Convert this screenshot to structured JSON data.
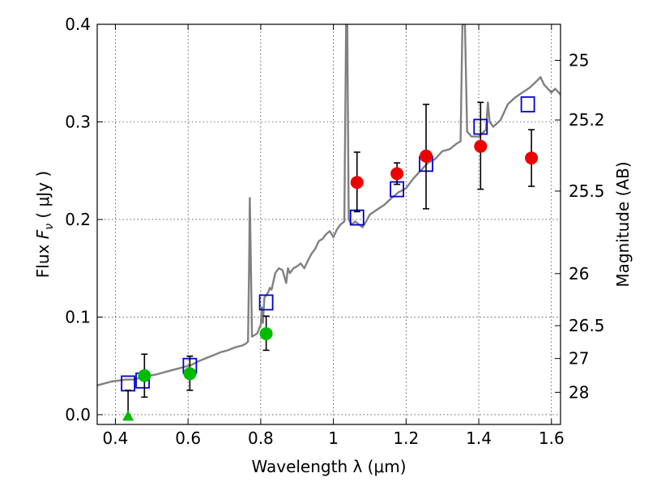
{
  "chart_data": {
    "type": "scatter",
    "xlabel": "Wavelength  λ (μm)",
    "ylabel_prefix": "Flux  ",
    "ylabel_var": "F",
    "ylabel_sub": "ν",
    "ylabel_unit": "  ( μJy )",
    "ylabel_right": "Magnitude (AB)",
    "xlim": [
      0.35,
      1.625
    ],
    "ylim": [
      -0.01,
      0.4
    ],
    "xticks": [
      {
        "v": 0.4,
        "label": "0.4"
      },
      {
        "v": 0.6,
        "label": "0.6"
      },
      {
        "v": 0.8,
        "label": "0.8"
      },
      {
        "v": 1.0,
        "label": "1"
      },
      {
        "v": 1.2,
        "label": "1.2"
      },
      {
        "v": 1.4,
        "label": "1.4"
      },
      {
        "v": 1.6,
        "label": "1.6"
      }
    ],
    "yticks": [
      {
        "v": 0.0,
        "label": "0.0"
      },
      {
        "v": 0.1,
        "label": "0.1"
      },
      {
        "v": 0.2,
        "label": "0.2"
      },
      {
        "v": 0.3,
        "label": "0.3"
      },
      {
        "v": 0.4,
        "label": "0.4"
      }
    ],
    "right_ticks": [
      {
        "mag": 25,
        "label": "25"
      },
      {
        "mag": 25.2,
        "label": "25.2"
      },
      {
        "mag": 25.5,
        "label": "25.5"
      },
      {
        "mag": 26,
        "label": "26"
      },
      {
        "mag": 26.5,
        "label": "26.5"
      },
      {
        "mag": 27,
        "label": "27"
      },
      {
        "mag": 28,
        "label": "28"
      }
    ],
    "grid": true,
    "colors": {
      "spectrum": "#808080",
      "model": "#0000cc",
      "optical": "#00bb00",
      "nir": "#ee0000",
      "errorbar": "#000000"
    },
    "series": [
      {
        "name": "model spectrum",
        "kind": "line",
        "points": [
          [
            0.35,
            0.03
          ],
          [
            0.37,
            0.032
          ],
          [
            0.39,
            0.034
          ],
          [
            0.41,
            0.035
          ],
          [
            0.43,
            0.036
          ],
          [
            0.45,
            0.036
          ],
          [
            0.47,
            0.038
          ],
          [
            0.49,
            0.04
          ],
          [
            0.51,
            0.041
          ],
          [
            0.53,
            0.043
          ],
          [
            0.55,
            0.045
          ],
          [
            0.57,
            0.047
          ],
          [
            0.59,
            0.049
          ],
          [
            0.61,
            0.051
          ],
          [
            0.63,
            0.055
          ],
          [
            0.65,
            0.058
          ],
          [
            0.67,
            0.061
          ],
          [
            0.69,
            0.064
          ],
          [
            0.71,
            0.066
          ],
          [
            0.73,
            0.069
          ],
          [
            0.75,
            0.071
          ],
          [
            0.76,
            0.073
          ],
          [
            0.765,
            0.075
          ],
          [
            0.768,
            0.15
          ],
          [
            0.77,
            0.222
          ],
          [
            0.773,
            0.15
          ],
          [
            0.776,
            0.08
          ],
          [
            0.79,
            0.083
          ],
          [
            0.8,
            0.092
          ],
          [
            0.803,
            0.11
          ],
          [
            0.806,
            0.094
          ],
          [
            0.81,
            0.12
          ],
          [
            0.82,
            0.125
          ],
          [
            0.825,
            0.13
          ],
          [
            0.83,
            0.128
          ],
          [
            0.84,
            0.145
          ],
          [
            0.85,
            0.15
          ],
          [
            0.86,
            0.148
          ],
          [
            0.87,
            0.135
          ],
          [
            0.875,
            0.15
          ],
          [
            0.88,
            0.145
          ],
          [
            0.89,
            0.15
          ],
          [
            0.9,
            0.152
          ],
          [
            0.91,
            0.155
          ],
          [
            0.92,
            0.15
          ],
          [
            0.93,
            0.158
          ],
          [
            0.94,
            0.165
          ],
          [
            0.95,
            0.17
          ],
          [
            0.96,
            0.178
          ],
          [
            0.97,
            0.18
          ],
          [
            0.98,
            0.185
          ],
          [
            0.99,
            0.188
          ],
          [
            1.0,
            0.182
          ],
          [
            1.01,
            0.19
          ],
          [
            1.02,
            0.195
          ],
          [
            1.03,
            0.198
          ],
          [
            1.035,
            0.4
          ],
          [
            1.038,
            0.4
          ],
          [
            1.042,
            0.2
          ],
          [
            1.05,
            0.195
          ],
          [
            1.06,
            0.198
          ],
          [
            1.07,
            0.195
          ],
          [
            1.08,
            0.192
          ],
          [
            1.09,
            0.198
          ],
          [
            1.1,
            0.205
          ],
          [
            1.12,
            0.21
          ],
          [
            1.14,
            0.215
          ],
          [
            1.16,
            0.222
          ],
          [
            1.18,
            0.228
          ],
          [
            1.2,
            0.232
          ],
          [
            1.22,
            0.242
          ],
          [
            1.24,
            0.25
          ],
          [
            1.26,
            0.258
          ],
          [
            1.28,
            0.262
          ],
          [
            1.3,
            0.27
          ],
          [
            1.32,
            0.272
          ],
          [
            1.34,
            0.278
          ],
          [
            1.35,
            0.28
          ],
          [
            1.355,
            0.4
          ],
          [
            1.362,
            0.4
          ],
          [
            1.368,
            0.29
          ],
          [
            1.38,
            0.285
          ],
          [
            1.4,
            0.285
          ],
          [
            1.42,
            0.292
          ],
          [
            1.425,
            0.32
          ],
          [
            1.43,
            0.3
          ],
          [
            1.44,
            0.295
          ],
          [
            1.46,
            0.302
          ],
          [
            1.48,
            0.318
          ],
          [
            1.5,
            0.325
          ],
          [
            1.52,
            0.33
          ],
          [
            1.54,
            0.335
          ],
          [
            1.56,
            0.342
          ],
          [
            1.57,
            0.346
          ],
          [
            1.58,
            0.338
          ],
          [
            1.6,
            0.33
          ],
          [
            1.61,
            0.334
          ],
          [
            1.625,
            0.328
          ]
        ]
      },
      {
        "name": "model photometry",
        "kind": "square",
        "points": [
          [
            0.435,
            0.032
          ],
          [
            0.475,
            0.035
          ],
          [
            0.605,
            0.05
          ],
          [
            0.815,
            0.115
          ],
          [
            1.065,
            0.202
          ],
          [
            1.175,
            0.231
          ],
          [
            1.255,
            0.257
          ],
          [
            1.405,
            0.295
          ],
          [
            1.535,
            0.318
          ]
        ]
      },
      {
        "name": "optical detections",
        "kind": "circle",
        "points": [
          {
            "x": 0.48,
            "y": 0.04,
            "lo": 0.018,
            "hi": 0.062
          },
          {
            "x": 0.605,
            "y": 0.042,
            "lo": 0.025,
            "hi": 0.06
          },
          {
            "x": 0.815,
            "y": 0.083,
            "lo": 0.066,
            "hi": 0.101
          }
        ]
      },
      {
        "name": "upper limit",
        "kind": "triangle",
        "points": [
          {
            "x": 0.435,
            "y": -0.002,
            "lo": -0.002,
            "hi": 0.025
          }
        ]
      },
      {
        "name": "near-IR detections",
        "kind": "circle",
        "points": [
          {
            "x": 1.065,
            "y": 0.238,
            "lo": 0.208,
            "hi": 0.269
          },
          {
            "x": 1.175,
            "y": 0.247,
            "lo": 0.236,
            "hi": 0.258
          },
          {
            "x": 1.255,
            "y": 0.265,
            "lo": 0.211,
            "hi": 0.318
          },
          {
            "x": 1.405,
            "y": 0.275,
            "lo": 0.231,
            "hi": 0.32
          },
          {
            "x": 1.545,
            "y": 0.263,
            "lo": 0.234,
            "hi": 0.292
          }
        ]
      }
    ]
  }
}
